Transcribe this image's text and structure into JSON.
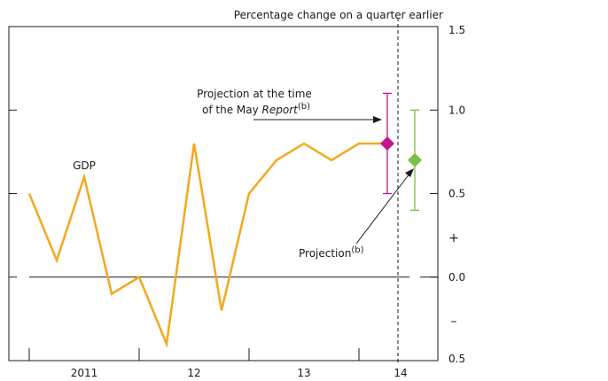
{
  "chart_data": {
    "type": "line",
    "unit_label": "Percentage change on a quarter earlier",
    "ylim": [
      -0.5,
      1.5
    ],
    "y_ticks": [
      1.5,
      1.0,
      0.5,
      0.0,
      -0.5
    ],
    "y_tick_labels": [
      "1.5",
      "1.0",
      "0.5",
      "0.0",
      "0.5"
    ],
    "sign_labels": {
      "plus": "+",
      "minus": "–"
    },
    "x_labels": [
      "2011",
      "12",
      "13",
      "14"
    ],
    "series": [
      {
        "name": "GDP",
        "color": "#f2a91c",
        "values": [
          0.5,
          0.1,
          0.6,
          -0.1,
          0.0,
          -0.4,
          0.8,
          -0.2,
          0.5,
          0.7,
          0.8,
          0.7,
          0.8,
          0.8
        ]
      }
    ],
    "projections": [
      {
        "label": "Projection at the time of the May Report",
        "label_line1": "Projection at the time",
        "label_line2_prefix": "of the May ",
        "label_line2_italic": "Report",
        "note": "(b)",
        "color": "#c0188b",
        "central": 0.8,
        "low": 0.5,
        "high": 1.1
      },
      {
        "label": "Projection",
        "note": "(b)",
        "color": "#7ac143",
        "central": 0.7,
        "low": 0.4,
        "high": 1.0
      }
    ]
  }
}
